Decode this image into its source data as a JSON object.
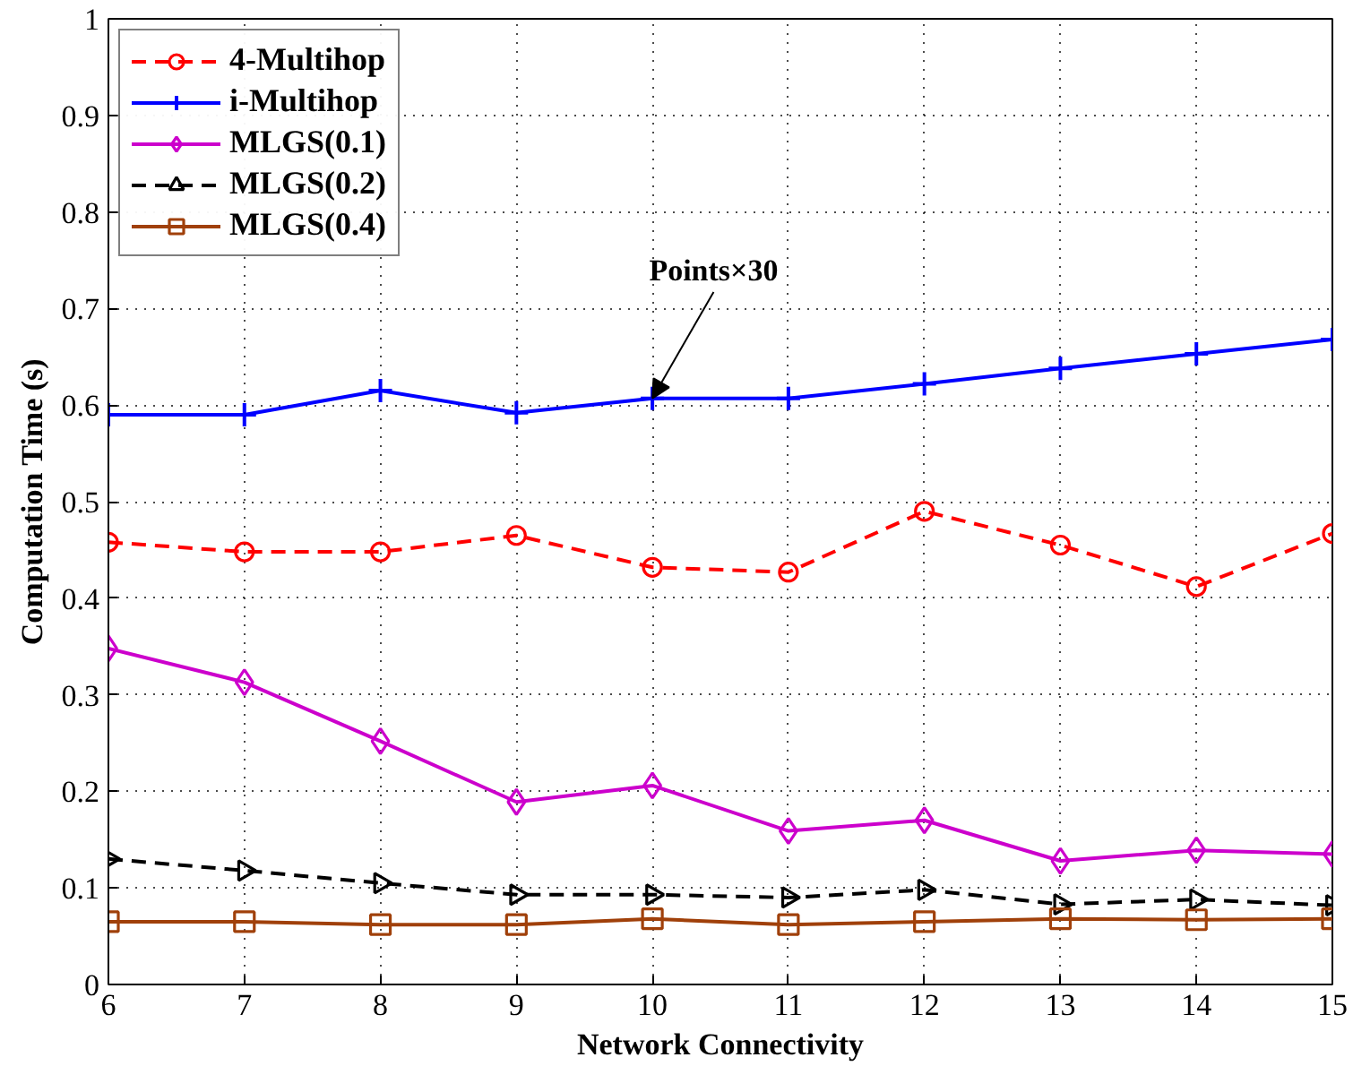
{
  "chart_data": {
    "type": "line",
    "xlabel": "Network Connectivity",
    "ylabel": "Computation Time (s)",
    "x": [
      6,
      7,
      8,
      9,
      10,
      11,
      12,
      13,
      14,
      15
    ],
    "xlim": [
      6,
      15
    ],
    "xticks": [
      6,
      7,
      8,
      9,
      10,
      11,
      12,
      13,
      14,
      15
    ],
    "ylim": [
      0,
      1
    ],
    "yticks": [
      0,
      0.1,
      0.2,
      0.3,
      0.4,
      0.5,
      0.6,
      0.7,
      0.8,
      0.9,
      1
    ],
    "grid": true,
    "legend": "top left",
    "annotations": [
      {
        "text": "Points×30",
        "x": 10,
        "y": 0.607
      }
    ],
    "series": [
      {
        "name": "4-Multihop",
        "color": "#ff0000",
        "marker": "circle",
        "line_style": "dashed",
        "values": [
          0.458,
          0.448,
          0.448,
          0.465,
          0.432,
          0.427,
          0.49,
          0.455,
          0.412,
          0.467
        ]
      },
      {
        "name": "i-Multihop",
        "color": "#0000ff",
        "marker": "cross",
        "line_style": "solid",
        "values": [
          0.59,
          0.59,
          0.615,
          0.592,
          0.607,
          0.607,
          0.622,
          0.638,
          0.653,
          0.668
        ]
      },
      {
        "name": "MLGS(0.1)",
        "color": "#cc00cc",
        "marker": "diamond",
        "line_style": "solid",
        "values": [
          0.348,
          0.313,
          0.252,
          0.189,
          0.206,
          0.159,
          0.17,
          0.128,
          0.139,
          0.135
        ]
      },
      {
        "name": "MLGS(0.2)",
        "color": "#000000",
        "marker": "triangle",
        "line_style": "dashed",
        "values": [
          0.13,
          0.118,
          0.105,
          0.093,
          0.093,
          0.09,
          0.098,
          0.083,
          0.088,
          0.082
        ]
      },
      {
        "name": "MLGS(0.4)",
        "color": "#a0400a",
        "marker": "square",
        "line_style": "solid",
        "values": [
          0.065,
          0.065,
          0.062,
          0.062,
          0.068,
          0.062,
          0.065,
          0.068,
          0.067,
          0.068
        ]
      }
    ]
  }
}
